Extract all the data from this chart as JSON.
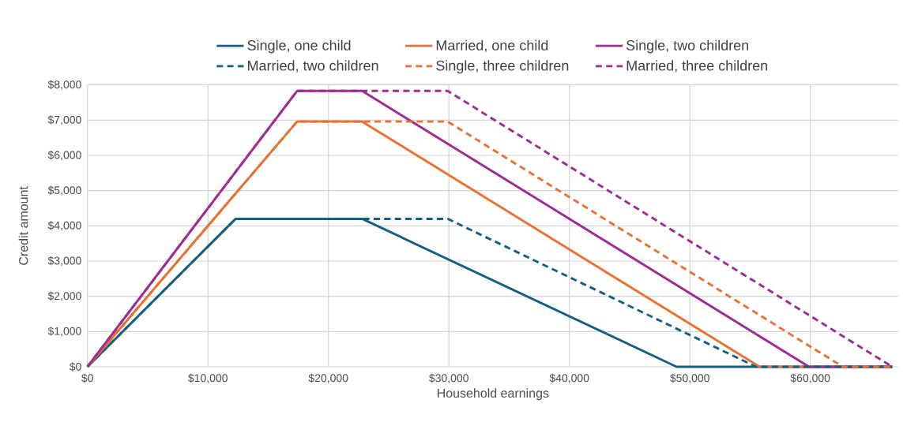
{
  "chart_data": {
    "type": "line",
    "xlabel": "Household earnings",
    "ylabel": "Credit amount",
    "xlim": [
      0,
      67300
    ],
    "ylim": [
      0,
      8000
    ],
    "xticks": [
      {
        "value": 0,
        "label": "$0"
      },
      {
        "value": 10000,
        "label": "$10,000"
      },
      {
        "value": 20000,
        "label": "$20,000"
      },
      {
        "value": 30000,
        "label": "$30,000"
      },
      {
        "value": 40000,
        "label": "$40,000"
      },
      {
        "value": 50000,
        "label": "$50,000"
      },
      {
        "value": 60000,
        "label": "$60,000"
      }
    ],
    "yticks": [
      {
        "value": 0,
        "label": "$0"
      },
      {
        "value": 1000,
        "label": "$1,000"
      },
      {
        "value": 2000,
        "label": "$2,000"
      },
      {
        "value": 3000,
        "label": "$3,000"
      },
      {
        "value": 4000,
        "label": "$4,000"
      },
      {
        "value": 5000,
        "label": "$5,000"
      },
      {
        "value": 6000,
        "label": "$6,000"
      },
      {
        "value": 7000,
        "label": "$7,000"
      },
      {
        "value": 8000,
        "label": "$8,000"
      }
    ],
    "grid": true,
    "legend": "top",
    "marker": "none",
    "series": [
      {
        "name": "Single, one child",
        "color": "#156082",
        "line_style": "solid",
        "x": [
          0,
          12300,
          22800,
          48900,
          66800
        ],
        "values": [
          0,
          4200,
          4200,
          0,
          0
        ]
      },
      {
        "name": "Married, one child",
        "color": "#e97132",
        "line_style": "solid",
        "x": [
          0,
          17400,
          22800,
          55800,
          66800
        ],
        "values": [
          0,
          6960,
          6960,
          0,
          0
        ]
      },
      {
        "name": "Single, two children",
        "color": "#a02b93",
        "line_style": "solid",
        "x": [
          0,
          17400,
          22800,
          59900,
          66800
        ],
        "values": [
          0,
          7830,
          7830,
          0,
          0
        ]
      },
      {
        "name": "Married, two children",
        "color": "#156082",
        "line_style": "dashed",
        "x": [
          0,
          12300,
          29900,
          55500,
          66800
        ],
        "values": [
          0,
          4200,
          4200,
          0,
          0
        ]
      },
      {
        "name": "Single, three children",
        "color": "#e97132",
        "line_style": "dashed",
        "x": [
          0,
          17400,
          29900,
          62700,
          66800
        ],
        "values": [
          0,
          6960,
          6960,
          0,
          0
        ]
      },
      {
        "name": "Married, three children",
        "color": "#a02b93",
        "line_style": "dashed",
        "x": [
          0,
          17400,
          29900,
          66800
        ],
        "values": [
          0,
          7830,
          7830,
          0
        ]
      }
    ]
  }
}
